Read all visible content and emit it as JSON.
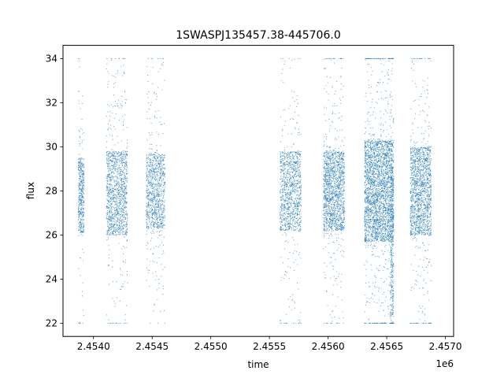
{
  "chart_data": {
    "type": "scatter",
    "title": "1SWASPJ135457.38-445706.0",
    "xlabel": "time",
    "ylabel": "flux",
    "x_offset_label": "1e6",
    "xlim": [
      2453740,
      2457070
    ],
    "ylim": [
      21.4,
      34.6
    ],
    "grid": false,
    "legend": "none",
    "marker_color": "#1f77b4",
    "x_ticks": [
      {
        "value": 2454000,
        "label": "2.4540"
      },
      {
        "value": 2454500,
        "label": "2.4545"
      },
      {
        "value": 2455000,
        "label": "2.4550"
      },
      {
        "value": 2455500,
        "label": "2.4555"
      },
      {
        "value": 2456000,
        "label": "2.4560"
      },
      {
        "value": 2456500,
        "label": "2.4565"
      },
      {
        "value": 2457000,
        "label": "2.4570"
      }
    ],
    "y_ticks": [
      {
        "value": 22,
        "label": "22"
      },
      {
        "value": 24,
        "label": "24"
      },
      {
        "value": 26,
        "label": "26"
      },
      {
        "value": 28,
        "label": "28"
      },
      {
        "value": 30,
        "label": "30"
      },
      {
        "value": 32,
        "label": "32"
      },
      {
        "value": 34,
        "label": "34"
      }
    ],
    "segments": [
      {
        "x0": 2453870,
        "x1": 2453920,
        "center": 27.8,
        "spread": 1.7,
        "count": 500,
        "ymin": 22,
        "ymax": 34
      },
      {
        "x0": 2454110,
        "x1": 2454290,
        "center": 27.9,
        "spread": 1.9,
        "count": 1400,
        "ymin": 22,
        "ymax": 34
      },
      {
        "x0": 2454450,
        "x1": 2454610,
        "center": 28.0,
        "spread": 1.7,
        "count": 1100,
        "ymin": 22,
        "ymax": 34
      },
      {
        "x0": 2455590,
        "x1": 2455770,
        "center": 28.0,
        "spread": 1.8,
        "count": 1200,
        "ymin": 22,
        "ymax": 34
      },
      {
        "x0": 2455960,
        "x1": 2456140,
        "center": 28.0,
        "spread": 1.8,
        "count": 1700,
        "ymin": 22,
        "ymax": 34
      },
      {
        "x0": 2456310,
        "x1": 2456560,
        "center": 28.0,
        "spread": 2.3,
        "count": 3200,
        "ymin": 22,
        "ymax": 34
      },
      {
        "x0": 2456530,
        "x1": 2456560,
        "center": 25.5,
        "spread": 3.2,
        "count": 400,
        "ymin": 22,
        "ymax": 34
      },
      {
        "x0": 2456700,
        "x1": 2456880,
        "center": 28.0,
        "spread": 2.0,
        "count": 1700,
        "ymin": 22,
        "ymax": 34
      }
    ]
  }
}
